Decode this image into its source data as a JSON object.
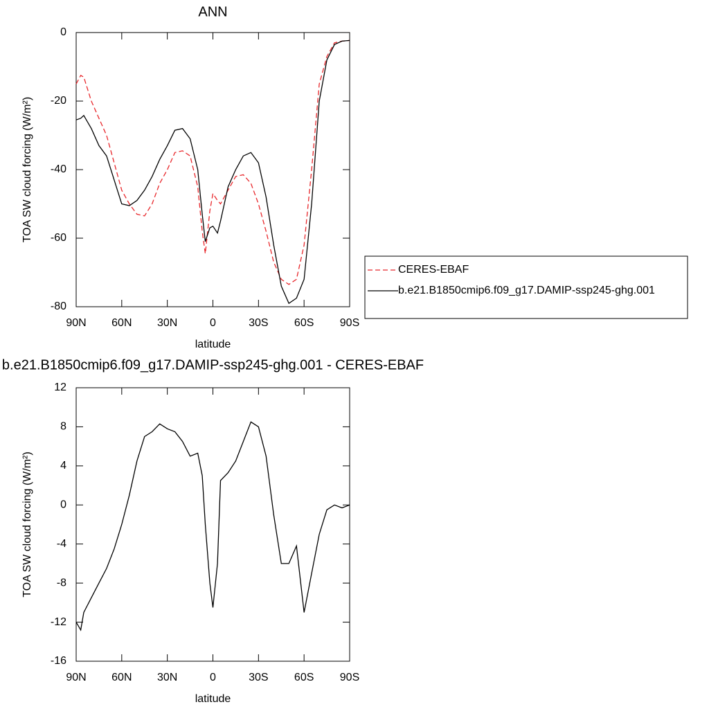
{
  "chart_data": [
    {
      "type": "line",
      "title": "ANN",
      "xlabel": "latitude",
      "ylabel": "TOA SW cloud forcing (W/m²)",
      "x": [
        90,
        87,
        85,
        80,
        75,
        70,
        65,
        60,
        55,
        50,
        45,
        40,
        35,
        30,
        25,
        20,
        15,
        10,
        7,
        5,
        2,
        0,
        -3,
        -5,
        -10,
        -15,
        -20,
        -25,
        -30,
        -35,
        -40,
        -45,
        -50,
        -55,
        -60,
        -65,
        -70,
        -75,
        -80,
        -85,
        -90
      ],
      "series": [
        {
          "name": "CERES-EBAF",
          "color": "#e8262a",
          "style": "dashed",
          "values": [
            -15,
            -12.5,
            -13,
            -20,
            -25,
            -30,
            -38,
            -46,
            -50,
            -53,
            -53.5,
            -50,
            -44,
            -40,
            -35,
            -34.5,
            -36,
            -45,
            -58,
            -64.5,
            -52,
            -47,
            -49,
            -50,
            -46,
            -42,
            -41.5,
            -44,
            -50,
            -58,
            -67,
            -72,
            -73.5,
            -72,
            -62,
            -40,
            -15,
            -7,
            -3,
            -2.5,
            -2.3
          ]
        },
        {
          "name": "b.e21.B1850cmip6.f09_g17.DAMIP-ssp245-ghg.001",
          "color": "#000000",
          "style": "solid",
          "values": [
            -25.5,
            -25,
            -24.2,
            -28,
            -33,
            -36,
            -43,
            -50,
            -50.5,
            -49,
            -46,
            -42,
            -37,
            -33,
            -28.5,
            -28,
            -31,
            -40,
            -53,
            -61,
            -57,
            -56.5,
            -58.5,
            -55,
            -45,
            -40,
            -36,
            -35,
            -38,
            -48,
            -62,
            -74,
            -79,
            -77.5,
            -72,
            -50,
            -20,
            -8,
            -3.5,
            -2.5,
            -2.3
          ]
        }
      ],
      "xlim": [
        90,
        -90
      ],
      "xticks": [
        {
          "value": 90,
          "label": "90N"
        },
        {
          "value": 60,
          "label": "60N"
        },
        {
          "value": 30,
          "label": "30N"
        },
        0,
        {
          "value": -30,
          "label": "30S"
        },
        {
          "value": -60,
          "label": "60S"
        },
        {
          "value": -90,
          "label": "90S"
        }
      ],
      "ylim": [
        -80,
        0
      ],
      "yticks": [
        -80,
        -60,
        -40,
        -20,
        0
      ],
      "legend": "right"
    },
    {
      "type": "line",
      "title": "b.e21.B1850cmip6.f09_g17.DAMIP-ssp245-ghg.001 - CERES-EBAF",
      "xlabel": "latitude",
      "ylabel": "TOA SW cloud forcing (W/m²)",
      "x": [
        90,
        87,
        85,
        80,
        75,
        70,
        65,
        60,
        55,
        50,
        45,
        40,
        35,
        30,
        25,
        20,
        15,
        10,
        7,
        5,
        2,
        0,
        -3,
        -5,
        -10,
        -15,
        -20,
        -25,
        -30,
        -35,
        -40,
        -45,
        -50,
        -55,
        -60,
        -65,
        -70,
        -75,
        -80,
        -85,
        -90
      ],
      "series": [
        {
          "color": "#000000",
          "style": "solid",
          "values": [
            -12,
            -12.8,
            -11,
            -9.5,
            -8,
            -6.5,
            -4.5,
            -2,
            1,
            4.5,
            7,
            7.5,
            8.3,
            7.8,
            7.5,
            6.5,
            5,
            5.3,
            3,
            -2,
            -8,
            -10.5,
            -6,
            2.5,
            3.3,
            4.5,
            6.5,
            8.5,
            8,
            5,
            -1,
            -6,
            -6,
            -4.2,
            -11,
            -7,
            -3,
            -0.5,
            0,
            -0.3,
            0
          ]
        }
      ],
      "xlim": [
        90,
        -90
      ],
      "xticks": [
        {
          "value": 90,
          "label": "90N"
        },
        {
          "value": 60,
          "label": "60N"
        },
        {
          "value": 30,
          "label": "30N"
        },
        0,
        {
          "value": -30,
          "label": "30S"
        },
        {
          "value": -60,
          "label": "60S"
        },
        {
          "value": -90,
          "label": "90S"
        }
      ],
      "ylim": [
        -16,
        12
      ],
      "yticks": [
        -16,
        -12,
        -8,
        -4,
        0,
        4,
        8,
        12
      ]
    }
  ]
}
